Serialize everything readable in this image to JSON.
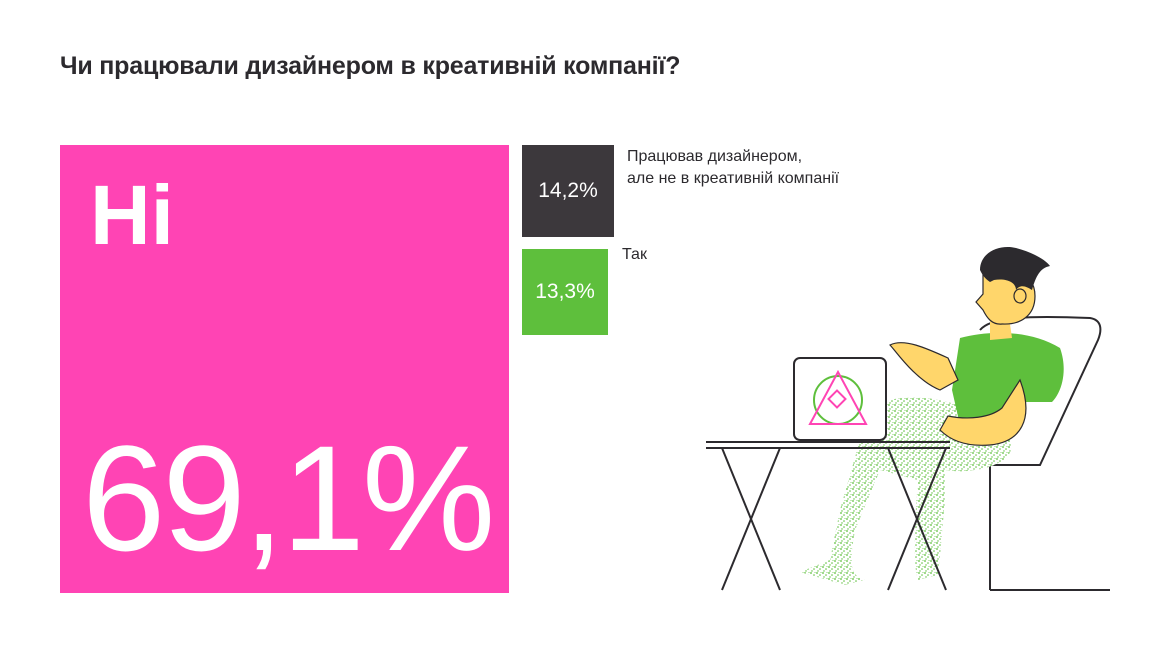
{
  "title": "Чи працювали дизайнером в креативній компанії?",
  "chart_data": {
    "type": "treemap",
    "title": "Чи працювали дизайнером в креативній компанії?",
    "unit": "%",
    "items": [
      {
        "label": "Ні",
        "value": 69.1,
        "display": "69,1%",
        "color": "#ff44b4"
      },
      {
        "label": "Працював дизайнером,\nале не в креативній компанії",
        "label_lines": [
          "Працював дизайнером,",
          "але не в креативній компанії"
        ],
        "value": 14.2,
        "display": "14,2%",
        "color": "#3c383c"
      },
      {
        "label": "Так",
        "value": 13.3,
        "display": "13,3%",
        "color": "#5ebf3c"
      }
    ]
  },
  "colors": {
    "accent_pink": "#ff44b4",
    "dark": "#3c383c",
    "green": "#5ebf3c",
    "text": "#2c2a2e"
  },
  "illustration": {
    "icon": "designer-at-laptop-illustration"
  }
}
